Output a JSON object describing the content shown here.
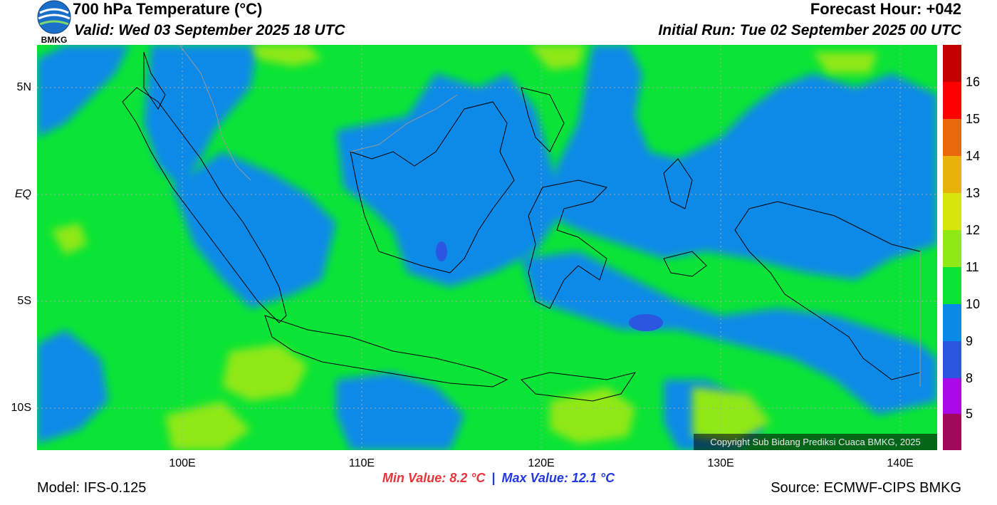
{
  "header": {
    "title": "700 hPa Temperature (°C)",
    "valid": "Valid: Wed 03 September 2025 18 UTC",
    "forecast_hour": "Forecast Hour: +042",
    "initial_run": "Initial Run: Tue 02 September 2025 00 UTC",
    "logo_text": "BMKG"
  },
  "axes": {
    "lat_labels": [
      {
        "label": "5N",
        "value": 5
      },
      {
        "label": "EQ",
        "value": 0
      },
      {
        "label": "5S",
        "value": -5
      },
      {
        "label": "10S",
        "value": -10
      }
    ],
    "lon_labels": [
      {
        "label": "100E",
        "value": 100
      },
      {
        "label": "110E",
        "value": 110
      },
      {
        "label": "120E",
        "value": 120
      },
      {
        "label": "130E",
        "value": 130
      },
      {
        "label": "140E",
        "value": 140
      }
    ],
    "lon_range": [
      92,
      142.2
    ],
    "lat_range": [
      -12,
      7
    ]
  },
  "colorbar": {
    "labels": [
      "16",
      "15",
      "14",
      "13",
      "12",
      "11",
      "10",
      "9",
      "8",
      "5"
    ],
    "colors": [
      "#c40000",
      "#ff0000",
      "#ff2a00",
      "#e8680a",
      "#e8b20a",
      "#d6e60a",
      "#90e814",
      "#0ae436",
      "#0a8ae8",
      "#2a56e0",
      "#a80ae8",
      "#a00a5a"
    ]
  },
  "fill_colors": {
    "ocean_main": "#0ae436",
    "cool": "#0a8ae8",
    "cooler": "#2a56e0",
    "warm": "#90e814"
  },
  "stats": {
    "min": "Min Value: 8.2 °C",
    "separator": "|",
    "max": "Max Value: 12.1 °C"
  },
  "footer": {
    "model": "Model: IFS-0.125",
    "source": "Source: ECMWF-CIPS BMKG",
    "copyright": "Copyright Sub Bidang Prediksi Cuaca BMKG, 2025"
  }
}
